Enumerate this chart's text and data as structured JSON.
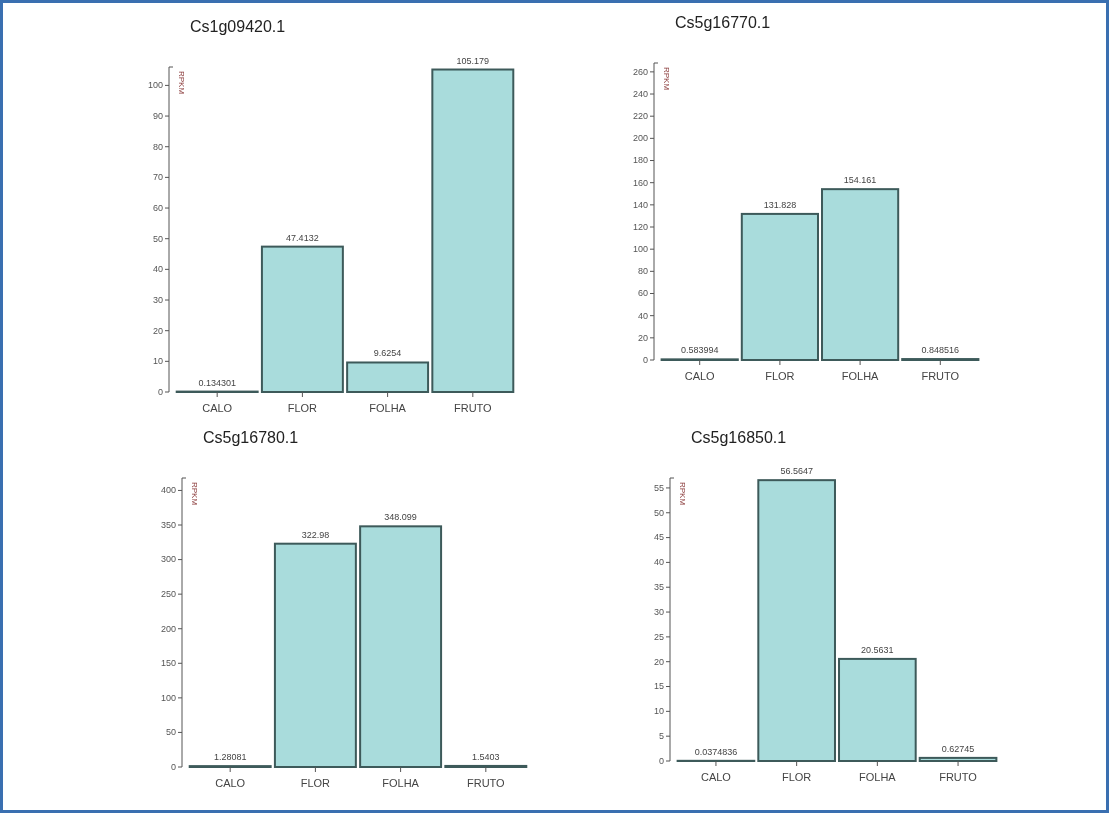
{
  "chart_data": [
    {
      "type": "bar",
      "title": "Cs1g09420.1",
      "ylabel": "RPKM",
      "categories": [
        "CALO",
        "FLOR",
        "FOLHA",
        "FRUTO"
      ],
      "values": [
        0.134301,
        47.4132,
        9.6254,
        105.179
      ],
      "color": "#a9dcdc",
      "ylim": [
        0,
        106
      ],
      "yticks": [
        0,
        10,
        20,
        30,
        40,
        50,
        60,
        70,
        80,
        90,
        100
      ],
      "data_labels": true,
      "value_labels": [
        "0.134301",
        "47.4132",
        "9.6254",
        "105.179"
      ]
    },
    {
      "type": "bar",
      "title": "Cs5g16770.1",
      "ylabel": "RPKM",
      "categories": [
        "CALO",
        "FLOR",
        "FOLHA",
        "FRUTO"
      ],
      "values": [
        0.583994,
        131.828,
        154.161,
        0.848516
      ],
      "color": "#a9dcdc",
      "ylim": [
        0,
        268
      ],
      "yticks": [
        0,
        20,
        40,
        60,
        80,
        100,
        120,
        140,
        160,
        180,
        200,
        220,
        240,
        260
      ],
      "data_labels": true,
      "value_labels": [
        "0.583994",
        "131.828",
        "154.161",
        "0.848516"
      ]
    },
    {
      "type": "bar",
      "title": "Cs5g16780.1",
      "ylabel": "RPKM",
      "categories": [
        "CALO",
        "FLOR",
        "FOLHA",
        "FRUTO"
      ],
      "values": [
        1.28081,
        322.98,
        348.099,
        1.5403
      ],
      "color": "#a9dcdc",
      "ylim": [
        0,
        418
      ],
      "yticks": [
        0,
        50,
        100,
        150,
        200,
        250,
        300,
        350,
        400
      ],
      "data_labels": true,
      "value_labels": [
        "1.28081",
        "322.98",
        "348.099",
        "1.5403"
      ]
    },
    {
      "type": "bar",
      "title": "Cs5g16850.1",
      "ylabel": "RPKM",
      "categories": [
        "CALO",
        "FLOR",
        "FOLHA",
        "FRUTO"
      ],
      "values": [
        0.0374836,
        56.5647,
        20.5631,
        0.62745
      ],
      "color": "#a9dcdc",
      "ylim": [
        0,
        57
      ],
      "yticks": [
        0,
        5,
        10,
        15,
        20,
        25,
        30,
        35,
        40,
        45,
        50,
        55
      ],
      "data_labels": true,
      "value_labels": [
        "0.0374836",
        "56.5647",
        "20.5631",
        "0.62745"
      ]
    }
  ]
}
